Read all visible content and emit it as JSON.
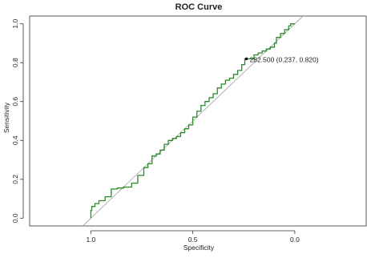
{
  "chart_data": {
    "type": "line",
    "title": "ROC Curve",
    "xlabel": "Specificity",
    "ylabel": "Sensitivity",
    "x_reversed": true,
    "xlim": [
      1.3,
      -0.35
    ],
    "ylim": [
      -0.04,
      1.04
    ],
    "x_ticks": [
      1.0,
      0.5,
      0.0
    ],
    "x_tick_labels": [
      "1.0",
      "0.5",
      "0.0"
    ],
    "y_ticks": [
      0.0,
      0.2,
      0.4,
      0.6,
      0.8,
      1.0
    ],
    "y_tick_labels": [
      "0.0",
      "0.2",
      "0.4",
      "0.6",
      "0.8",
      "1.0"
    ],
    "grid": false,
    "reference_line": {
      "from": [
        1.0,
        0.0
      ],
      "to": [
        0.0,
        1.0
      ],
      "color": "#aaaaaa"
    },
    "series": [
      {
        "color": "#2a8a2a",
        "points": [
          [
            1.0,
            0.0
          ],
          [
            0.995,
            0.04
          ],
          [
            0.98,
            0.06
          ],
          [
            0.96,
            0.075
          ],
          [
            0.93,
            0.09
          ],
          [
            0.9,
            0.11
          ],
          [
            0.87,
            0.15
          ],
          [
            0.84,
            0.155
          ],
          [
            0.8,
            0.16
          ],
          [
            0.77,
            0.18
          ],
          [
            0.74,
            0.22
          ],
          [
            0.72,
            0.26
          ],
          [
            0.7,
            0.28
          ],
          [
            0.68,
            0.32
          ],
          [
            0.66,
            0.33
          ],
          [
            0.64,
            0.35
          ],
          [
            0.62,
            0.38
          ],
          [
            0.6,
            0.4
          ],
          [
            0.58,
            0.41
          ],
          [
            0.56,
            0.42
          ],
          [
            0.54,
            0.44
          ],
          [
            0.52,
            0.46
          ],
          [
            0.5,
            0.48
          ],
          [
            0.48,
            0.52
          ],
          [
            0.46,
            0.55
          ],
          [
            0.44,
            0.58
          ],
          [
            0.42,
            0.6
          ],
          [
            0.4,
            0.62
          ],
          [
            0.38,
            0.64
          ],
          [
            0.36,
            0.67
          ],
          [
            0.34,
            0.69
          ],
          [
            0.32,
            0.71
          ],
          [
            0.3,
            0.72
          ],
          [
            0.28,
            0.74
          ],
          [
            0.26,
            0.76
          ],
          [
            0.245,
            0.79
          ],
          [
            0.237,
            0.82
          ],
          [
            0.2,
            0.82
          ],
          [
            0.18,
            0.84
          ],
          [
            0.16,
            0.85
          ],
          [
            0.14,
            0.86
          ],
          [
            0.12,
            0.87
          ],
          [
            0.1,
            0.88
          ],
          [
            0.09,
            0.9
          ],
          [
            0.07,
            0.93
          ],
          [
            0.05,
            0.95
          ],
          [
            0.03,
            0.97
          ],
          [
            0.02,
            0.99
          ],
          [
            0.0,
            1.0
          ]
        ]
      }
    ],
    "annotations": [
      {
        "x": 0.237,
        "y": 0.82,
        "text": "282.500 (0.237, 0.820)"
      }
    ]
  }
}
